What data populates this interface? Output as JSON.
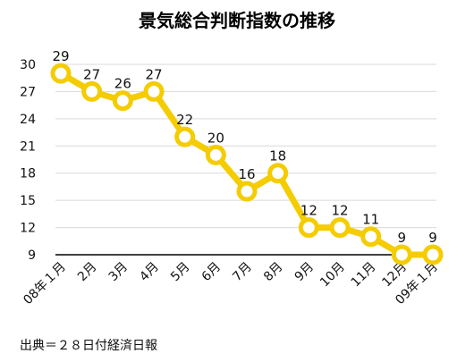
{
  "chart_data": {
    "type": "line",
    "title": "景気総合判断指数の推移",
    "categories": [
      "08年１月",
      "2月",
      "3月",
      "4月",
      "5月",
      "6月",
      "7月",
      "8月",
      "9月",
      "10月",
      "11月",
      "12月",
      "09年１月"
    ],
    "values": [
      29,
      27,
      26,
      27,
      22,
      20,
      16,
      18,
      12,
      12,
      11,
      9,
      9
    ],
    "ylim": [
      9,
      30
    ],
    "yticks": [
      9,
      12,
      15,
      18,
      21,
      24,
      27,
      30
    ],
    "grid": true,
    "line_color": "#f4cc00",
    "grid_color": "#d9d9d9",
    "axis_color": "#000000"
  },
  "source": "出典＝２８日付経済日報"
}
